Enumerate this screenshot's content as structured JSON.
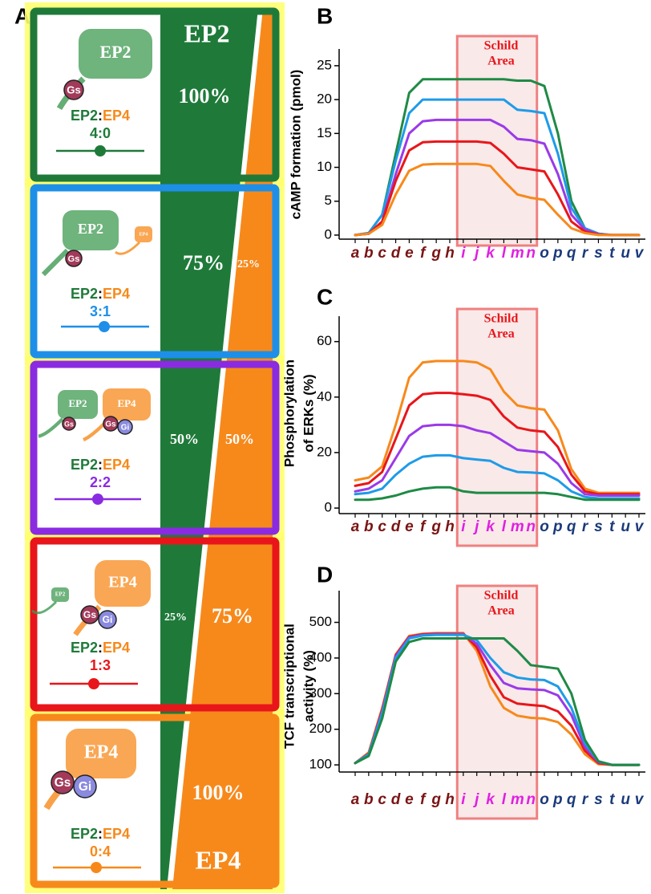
{
  "panel_a": {
    "label": "A",
    "boxes": [
      {
        "color": "#1f7a3a",
        "ratio_color": "#1f7a3a",
        "icon_labels": [
          "EP2",
          "Gs"
        ],
        "ratio_label": [
          "EP2",
          ":",
          "EP4"
        ],
        "ratio": "4:0",
        "column_label": "EP2",
        "ep2_share": "100%"
      },
      {
        "color": "#1e8fe8",
        "ratio_color": "#1e8fe8",
        "icon_labels": [
          "EP2",
          "Gs",
          "EP4"
        ],
        "ratio_label": [
          "EP2",
          ":",
          "EP4"
        ],
        "ratio": "3:1",
        "ep2_share": "75%",
        "ep4_share": "25%"
      },
      {
        "color": "#8a2be2",
        "ratio_color": "#8a2be2",
        "icon_labels": [
          "EP2",
          "Gs",
          "EP4",
          "Gs",
          "Gi"
        ],
        "ratio_label": [
          "EP2",
          ":",
          "EP4"
        ],
        "ratio": "2:2",
        "ep2_share": "50%",
        "ep4_share": "50%"
      },
      {
        "color": "#e8161a",
        "ratio_color": "#e8161a",
        "icon_labels": [
          "EP2",
          "EP4",
          "Gs",
          "Gi"
        ],
        "ratio_label": [
          "EP2",
          ":",
          "EP4"
        ],
        "ratio": "1:3",
        "ep2_share": "25%",
        "ep4_share": "75%"
      },
      {
        "color": "#f7891b",
        "ratio_color": "#f7891b",
        "icon_labels": [
          "EP4",
          "Gs",
          "Gi"
        ],
        "ratio_label": [
          "EP2",
          ":",
          "EP4"
        ],
        "ratio": "0:4",
        "column_label": "EP4",
        "ep4_share": "100%"
      }
    ]
  },
  "chart_data": [
    {
      "type": "line",
      "panel_label": "B",
      "y_label": [
        "cAMP formation (pmol)"
      ],
      "categories": [
        "a",
        "b",
        "c",
        "d",
        "e",
        "f",
        "g",
        "h",
        "i",
        "j",
        "k",
        "l",
        "m",
        "n",
        "o",
        "p",
        "q",
        "r",
        "s",
        "t",
        "u",
        "v"
      ],
      "category_colors": [
        "#7a1414",
        "#7a1414",
        "#7a1414",
        "#7a1414",
        "#7a1414",
        "#7a1414",
        "#7a1414",
        "#7a1414",
        "#e020e0",
        "#e020e0",
        "#e020e0",
        "#e020e0",
        "#e020e0",
        "#e020e0",
        "#1a3a7a",
        "#1a3a7a",
        "#1a3a7a",
        "#1a3a7a",
        "#1a3a7a",
        "#1a3a7a",
        "#1a3a7a",
        "#1a3a7a"
      ],
      "annotation": {
        "text": [
          "Schild",
          "Area"
        ],
        "span": [
          "i",
          "n"
        ],
        "color": "#e8161a"
      },
      "ylim": [
        -0.6,
        27
      ],
      "yticks": [
        0,
        5,
        10,
        15,
        20,
        25
      ],
      "series": [
        {
          "color": "#1f8a45",
          "values": [
            0,
            0.3,
            3,
            12,
            21,
            23,
            23,
            23,
            23,
            23,
            23,
            23,
            22.8,
            22.8,
            22,
            15,
            5,
            1,
            0.2,
            0,
            0,
            0
          ]
        },
        {
          "color": "#1e9be8",
          "values": [
            0,
            0.3,
            3,
            11,
            18,
            20,
            20,
            20,
            20,
            20,
            20,
            20,
            18.5,
            18.3,
            18,
            12,
            4,
            1,
            0.2,
            0,
            0,
            0
          ]
        },
        {
          "color": "#9a3ae8",
          "values": [
            0,
            0.2,
            2,
            9,
            15,
            16.8,
            17,
            17,
            17,
            17,
            17,
            16,
            14.2,
            14,
            13.5,
            9,
            3,
            0.8,
            0.1,
            0,
            0,
            0
          ]
        },
        {
          "color": "#e8161a",
          "values": [
            0,
            0.2,
            2,
            8,
            12.5,
            13.7,
            13.8,
            13.8,
            13.8,
            13.8,
            13.6,
            12,
            10,
            9.7,
            9.4,
            6,
            2,
            0.5,
            0.1,
            0,
            0,
            0
          ]
        },
        {
          "color": "#f7891b",
          "values": [
            0,
            0.2,
            1.5,
            6,
            9.5,
            10.4,
            10.5,
            10.5,
            10.5,
            10.5,
            10.2,
            8,
            6,
            5.5,
            5.2,
            3,
            1,
            0.3,
            0,
            0,
            0,
            0
          ]
        }
      ]
    },
    {
      "type": "line",
      "panel_label": "C",
      "y_label": [
        "Phosphorylation",
        "of ERKs (%)"
      ],
      "categories": [
        "a",
        "b",
        "c",
        "d",
        "e",
        "f",
        "g",
        "h",
        "i",
        "j",
        "k",
        "l",
        "m",
        "n",
        "o",
        "p",
        "q",
        "r",
        "s",
        "t",
        "u",
        "v"
      ],
      "category_colors": [
        "#7a1414",
        "#7a1414",
        "#7a1414",
        "#7a1414",
        "#7a1414",
        "#7a1414",
        "#7a1414",
        "#7a1414",
        "#e020e0",
        "#e020e0",
        "#e020e0",
        "#e020e0",
        "#e020e0",
        "#e020e0",
        "#1a3a7a",
        "#1a3a7a",
        "#1a3a7a",
        "#1a3a7a",
        "#1a3a7a",
        "#1a3a7a",
        "#1a3a7a",
        "#1a3a7a"
      ],
      "annotation": {
        "text": [
          "Schild",
          "Area"
        ],
        "span": [
          "i",
          "n"
        ],
        "color": "#e8161a"
      },
      "ylim": [
        -2,
        68
      ],
      "yticks": [
        0,
        20,
        40,
        60
      ],
      "series": [
        {
          "color": "#f7891b",
          "values": [
            10,
            11,
            15,
            30,
            47,
            52.5,
            53,
            53,
            53,
            52.5,
            50,
            42,
            37,
            36,
            35.5,
            28,
            14,
            7,
            5.5,
            5.5,
            5.5,
            5.5
          ]
        },
        {
          "color": "#e8161a",
          "values": [
            8,
            9,
            13,
            25,
            37,
            41,
            41.5,
            41.5,
            41,
            40.5,
            39,
            33,
            29,
            28,
            27.5,
            22,
            12,
            6,
            5,
            5,
            5,
            5
          ]
        },
        {
          "color": "#9a3ae8",
          "values": [
            6,
            7,
            10,
            18,
            26,
            29.5,
            30,
            30,
            29.5,
            28,
            27,
            24,
            21,
            20.5,
            20,
            16,
            9,
            5,
            4.5,
            4.5,
            4.5,
            4.5
          ]
        },
        {
          "color": "#1e9be8",
          "values": [
            5,
            5.5,
            7,
            12,
            16,
            18.5,
            19,
            19,
            18,
            17.5,
            17,
            14.5,
            13,
            12.8,
            12.5,
            10,
            6,
            4,
            3.5,
            3.5,
            3.5,
            3.5
          ]
        },
        {
          "color": "#1f8a45",
          "values": [
            3,
            3,
            3.5,
            4.5,
            6,
            7,
            7.5,
            7.5,
            6,
            5.5,
            5.5,
            5.5,
            5.5,
            5.5,
            5.5,
            5,
            4,
            3,
            3,
            3,
            3,
            3
          ]
        }
      ]
    },
    {
      "type": "line",
      "panel_label": "D",
      "y_label": [
        "TCF transcriptional",
        "activity (%)"
      ],
      "categories": [
        "a",
        "b",
        "c",
        "d",
        "e",
        "f",
        "g",
        "h",
        "i",
        "j",
        "k",
        "l",
        "m",
        "n",
        "o",
        "p",
        "q",
        "r",
        "s",
        "t",
        "u",
        "v"
      ],
      "category_colors": [
        "#7a1414",
        "#7a1414",
        "#7a1414",
        "#7a1414",
        "#7a1414",
        "#7a1414",
        "#7a1414",
        "#7a1414",
        "#e020e0",
        "#e020e0",
        "#e020e0",
        "#e020e0",
        "#e020e0",
        "#e020e0",
        "#1a3a7a",
        "#1a3a7a",
        "#1a3a7a",
        "#1a3a7a",
        "#1a3a7a",
        "#1a3a7a",
        "#1a3a7a",
        "#1a3a7a"
      ],
      "annotation": {
        "text": [
          "Schild",
          "Area"
        ],
        "span": [
          "i",
          "n"
        ],
        "color": "#e8161a"
      },
      "ylim": [
        80,
        580
      ],
      "yticks": [
        100,
        200,
        300,
        400,
        500
      ],
      "series": [
        {
          "color": "#f7891b",
          "values": [
            105,
            135,
            260,
            410,
            462,
            468,
            470,
            470,
            470,
            420,
            320,
            260,
            238,
            232,
            230,
            220,
            185,
            130,
            102,
            100,
            100,
            100
          ]
        },
        {
          "color": "#e8161a",
          "values": [
            105,
            132,
            255,
            408,
            460,
            467,
            468,
            468,
            468,
            430,
            350,
            290,
            272,
            268,
            265,
            250,
            210,
            140,
            105,
            100,
            100,
            100
          ]
        },
        {
          "color": "#9a3ae8",
          "values": [
            105,
            130,
            250,
            405,
            458,
            465,
            467,
            467,
            467,
            440,
            380,
            330,
            315,
            312,
            310,
            295,
            240,
            150,
            108,
            100,
            100,
            100
          ]
        },
        {
          "color": "#1e9be8",
          "values": [
            105,
            130,
            245,
            400,
            455,
            463,
            465,
            465,
            465,
            450,
            400,
            360,
            345,
            340,
            338,
            320,
            260,
            160,
            110,
            100,
            100,
            100
          ]
        },
        {
          "color": "#1f8a45",
          "values": [
            105,
            125,
            230,
            390,
            445,
            455,
            455,
            455,
            455,
            455,
            455,
            455,
            420,
            380,
            375,
            370,
            300,
            170,
            110,
            100,
            100,
            100
          ]
        }
      ]
    }
  ]
}
